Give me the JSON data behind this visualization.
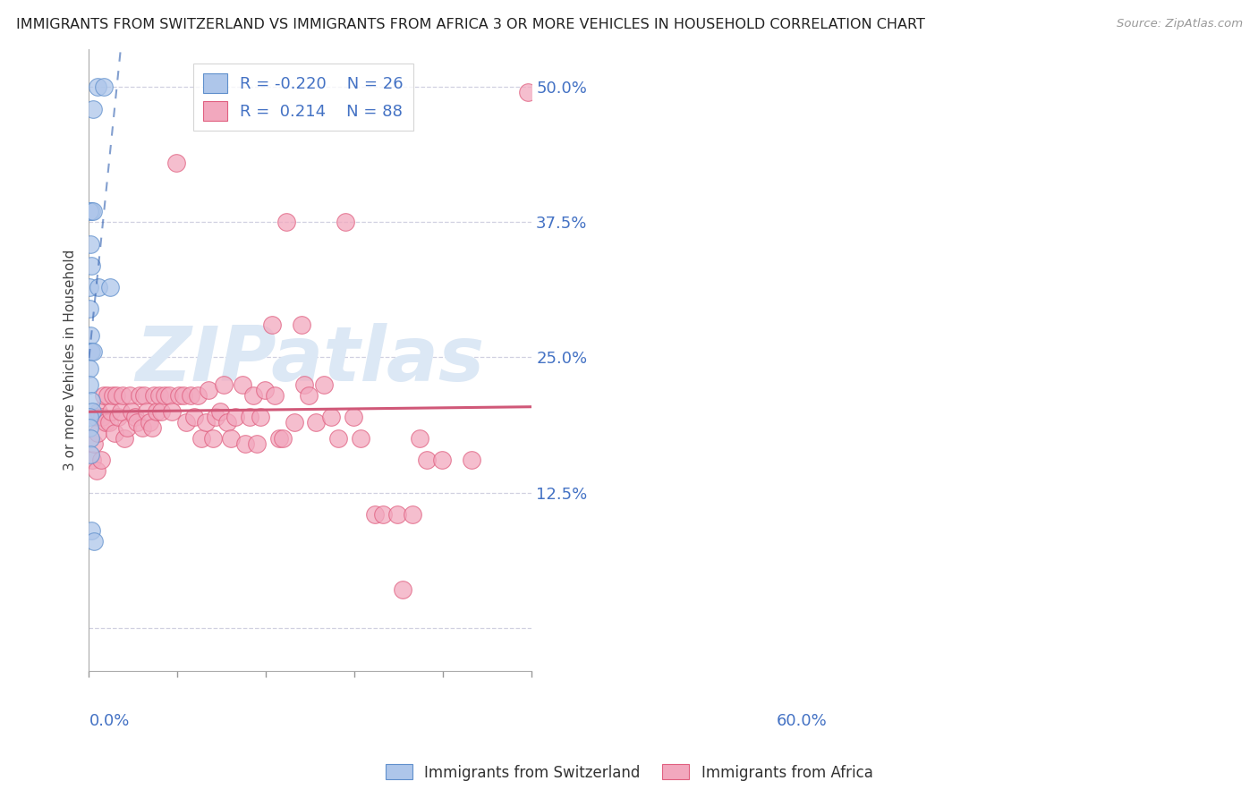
{
  "title": "IMMIGRANTS FROM SWITZERLAND VS IMMIGRANTS FROM AFRICA 3 OR MORE VEHICLES IN HOUSEHOLD CORRELATION CHART",
  "source": "Source: ZipAtlas.com",
  "ylabel": "3 or more Vehicles in Household",
  "xlim": [
    0.0,
    0.6
  ],
  "ylim": [
    -0.04,
    0.535
  ],
  "r_switzerland": -0.22,
  "n_switzerland": 26,
  "r_africa": 0.214,
  "n_africa": 88,
  "legend_color": "#4472C4",
  "swiss_fill": "#aec6ea",
  "africa_fill": "#f2a8be",
  "swiss_edge": "#6090cc",
  "africa_edge": "#e06080",
  "swiss_line_color": "#3060b0",
  "africa_line_color": "#d05878",
  "watermark_color": "#dce8f5",
  "grid_color": "#d0d0e0",
  "swiss_points_x": [
    0.005,
    0.012,
    0.02,
    0.003,
    0.001,
    0.006,
    0.002,
    0.003,
    0.001,
    0.013,
    0.028,
    0.001,
    0.002,
    0.002,
    0.003,
    0.005,
    0.001,
    0.001,
    0.003,
    0.004,
    0.001,
    0.001,
    0.002,
    0.002,
    0.003,
    0.007
  ],
  "swiss_points_y": [
    0.48,
    0.5,
    0.5,
    0.385,
    0.385,
    0.385,
    0.355,
    0.335,
    0.315,
    0.315,
    0.315,
    0.295,
    0.27,
    0.255,
    0.255,
    0.255,
    0.24,
    0.225,
    0.21,
    0.2,
    0.195,
    0.185,
    0.175,
    0.16,
    0.09,
    0.08
  ],
  "africa_points_x": [
    0.004,
    0.007,
    0.009,
    0.01,
    0.011,
    0.013,
    0.016,
    0.018,
    0.02,
    0.022,
    0.025,
    0.027,
    0.03,
    0.032,
    0.035,
    0.037,
    0.04,
    0.043,
    0.046,
    0.048,
    0.052,
    0.055,
    0.058,
    0.062,
    0.065,
    0.068,
    0.072,
    0.075,
    0.078,
    0.082,
    0.085,
    0.088,
    0.092,
    0.095,
    0.098,
    0.102,
    0.108,
    0.112,
    0.118,
    0.122,
    0.128,
    0.132,
    0.138,
    0.142,
    0.148,
    0.152,
    0.158,
    0.162,
    0.168,
    0.172,
    0.178,
    0.182,
    0.188,
    0.192,
    0.198,
    0.208,
    0.212,
    0.218,
    0.222,
    0.228,
    0.232,
    0.238,
    0.248,
    0.252,
    0.258,
    0.262,
    0.268,
    0.278,
    0.288,
    0.292,
    0.298,
    0.308,
    0.318,
    0.328,
    0.338,
    0.348,
    0.358,
    0.368,
    0.388,
    0.398,
    0.418,
    0.425,
    0.438,
    0.448,
    0.458,
    0.478,
    0.518,
    0.595
  ],
  "africa_points_y": [
    0.155,
    0.17,
    0.195,
    0.145,
    0.18,
    0.2,
    0.155,
    0.195,
    0.215,
    0.19,
    0.215,
    0.19,
    0.2,
    0.215,
    0.18,
    0.215,
    0.195,
    0.2,
    0.215,
    0.175,
    0.185,
    0.215,
    0.2,
    0.195,
    0.19,
    0.215,
    0.185,
    0.215,
    0.2,
    0.19,
    0.185,
    0.215,
    0.2,
    0.215,
    0.2,
    0.215,
    0.215,
    0.2,
    0.43,
    0.215,
    0.215,
    0.19,
    0.215,
    0.195,
    0.215,
    0.175,
    0.19,
    0.22,
    0.175,
    0.195,
    0.2,
    0.225,
    0.19,
    0.175,
    0.195,
    0.225,
    0.17,
    0.195,
    0.215,
    0.17,
    0.195,
    0.22,
    0.28,
    0.215,
    0.175,
    0.175,
    0.375,
    0.19,
    0.28,
    0.225,
    0.215,
    0.19,
    0.225,
    0.195,
    0.175,
    0.375,
    0.195,
    0.175,
    0.105,
    0.105,
    0.105,
    0.035,
    0.105,
    0.175,
    0.155,
    0.155,
    0.155,
    0.495
  ],
  "swiss_line_x0": 0.0,
  "swiss_line_x1": 0.6,
  "africa_line_x0": 0.0,
  "africa_line_x1": 0.6
}
